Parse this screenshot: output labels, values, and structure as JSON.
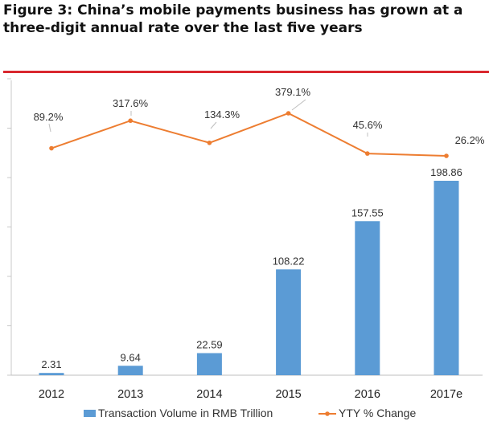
{
  "title": "Figure 3: China’s mobile payments business has grown at a three-digit annual rate over the last five years",
  "colors": {
    "bar": "#5b9bd5",
    "line": "#ed7d31",
    "rule": "#d9282f"
  },
  "chart_data": {
    "type": "bar+line",
    "categories": [
      "2012",
      "2013",
      "2014",
      "2015",
      "2016",
      "2017e"
    ],
    "series": [
      {
        "name": "Transaction Volume in RMB Trillion",
        "type": "bar",
        "values": [
          2.31,
          9.64,
          22.59,
          108.22,
          157.55,
          198.86
        ],
        "labels": [
          "2.31",
          "9.64",
          "22.59",
          "108.22",
          "157.55",
          "198.86"
        ]
      },
      {
        "name": "YTY % Change",
        "type": "line",
        "values": [
          89.2,
          317.6,
          134.3,
          379.1,
          45.6,
          26.2
        ],
        "labels": [
          "89.2%",
          "317.6%",
          "134.3%",
          "379.1%",
          "45.6%",
          "26.2%"
        ]
      }
    ],
    "legend_position": "bottom",
    "grid": false
  }
}
